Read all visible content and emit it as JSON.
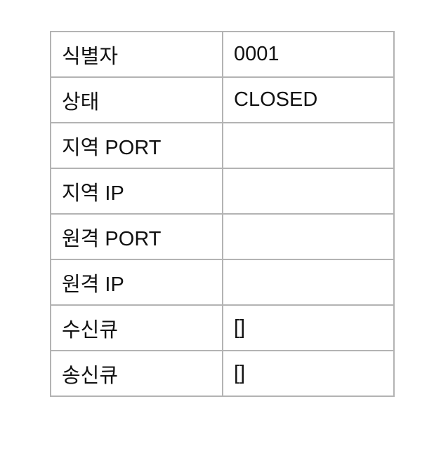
{
  "table": {
    "rows": [
      {
        "label": "식별자",
        "value": "0001"
      },
      {
        "label": "상태",
        "value": "CLOSED"
      },
      {
        "label": "지역 PORT",
        "value": ""
      },
      {
        "label": "지역 IP",
        "value": ""
      },
      {
        "label": "원격 PORT",
        "value": ""
      },
      {
        "label": "원격 IP",
        "value": ""
      },
      {
        "label": "수신큐",
        "value": "[]"
      },
      {
        "label": "송신큐",
        "value": "[]"
      }
    ]
  }
}
